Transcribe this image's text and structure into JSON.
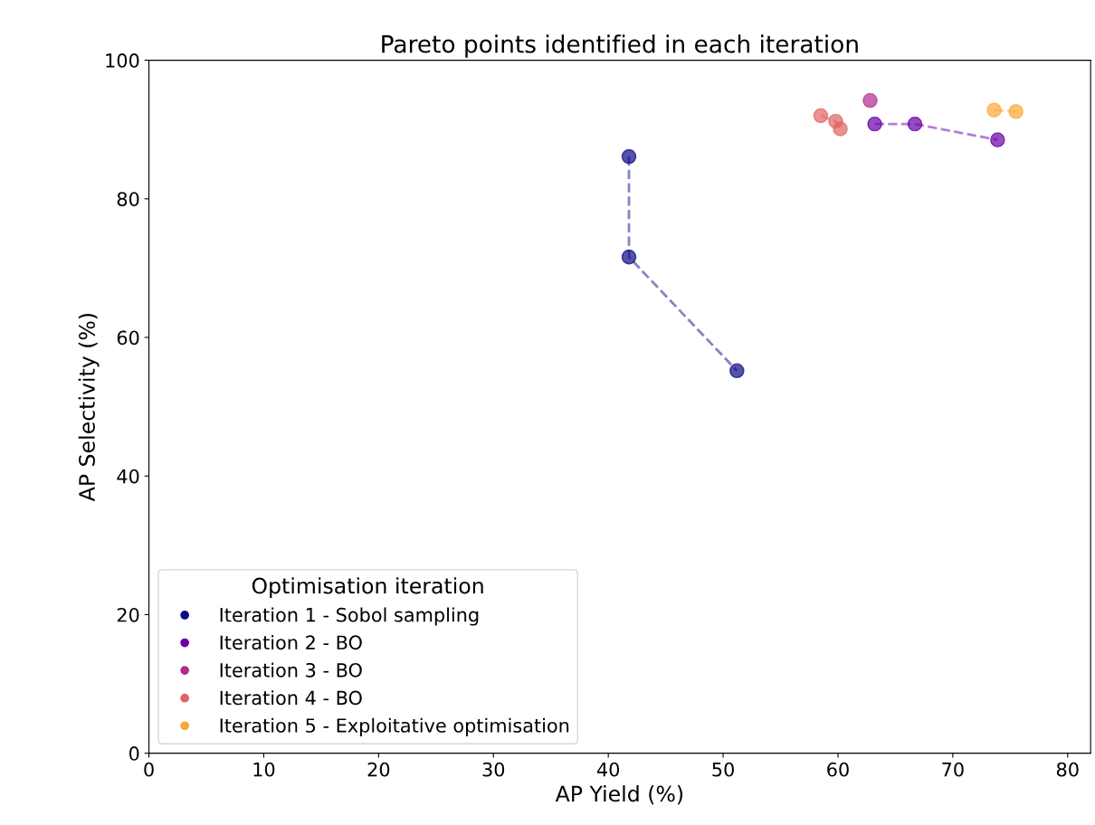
{
  "chart_data": {
    "type": "line",
    "title": "Pareto points identified in each iteration",
    "xlabel": "AP Yield (%)",
    "ylabel": "AP Selectivity (%)",
    "legend_title": "Optimisation iteration",
    "series": [
      {
        "name": "Iteration 1 - Sobol sampling",
        "color": "#0d0887",
        "x": [
          41.8,
          41.8,
          51.2
        ],
        "values": [
          86.1,
          71.6,
          55.2
        ]
      },
      {
        "name": "Iteration 2 - BO",
        "color": "#6a00a8",
        "x": [
          63.2,
          66.7,
          73.9
        ],
        "values": [
          90.8,
          90.8,
          88.5
        ]
      },
      {
        "name": "Iteration 3 - BO",
        "color": "#b12a90",
        "x": [
          62.8
        ],
        "values": [
          94.2
        ]
      },
      {
        "name": "Iteration 4 - BO",
        "color": "#e16462",
        "x": [
          58.5,
          59.8,
          60.2
        ],
        "values": [
          92.0,
          91.2,
          90.1
        ]
      },
      {
        "name": "Iteration 5 - Exploitative optimisation",
        "color": "#fca636",
        "x": [
          73.6,
          75.5
        ],
        "values": [
          92.8,
          92.6
        ]
      }
    ],
    "xlim": [
      0,
      82
    ],
    "xticks": [
      0,
      10,
      20,
      30,
      40,
      50,
      60,
      70,
      80
    ],
    "ylim": [
      0,
      100
    ],
    "yticks": [
      0,
      20,
      40,
      60,
      80,
      100
    ],
    "marker": "circle",
    "line_style": "dashed",
    "legend": "bottom left",
    "grid": false
  }
}
